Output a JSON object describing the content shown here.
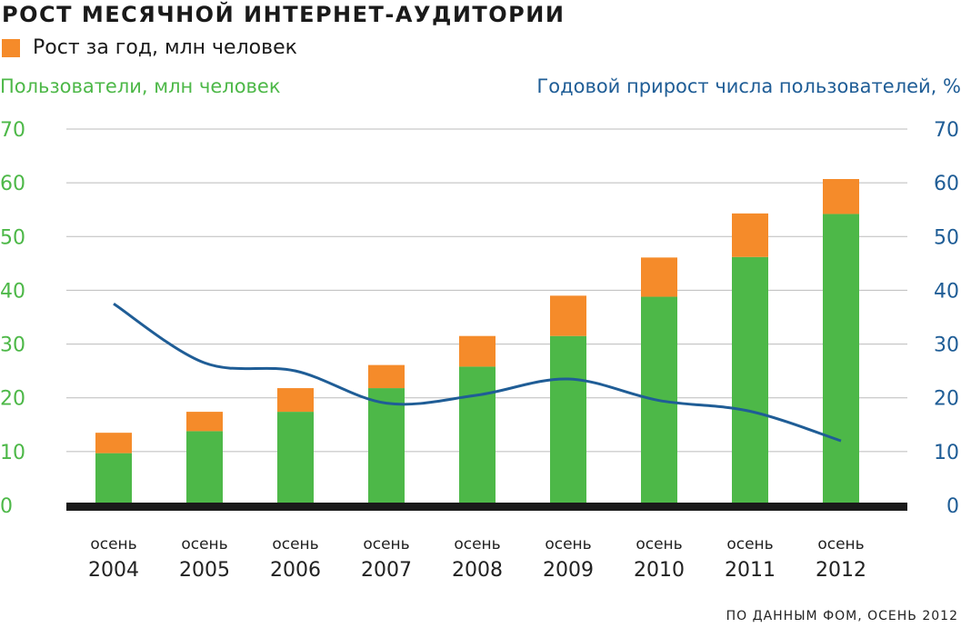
{
  "title": "РОСТ МЕСЯЧНОЙ ИНТЕРНЕТ-АУДИТОРИИ",
  "legend": {
    "label": "Рост за год, млн человек",
    "color": "#f58b2a"
  },
  "left_axis_title": "Пользователи, млн человек",
  "right_axis_title": "Годовой прирост числа пользователей, %",
  "source": "ПО ДАННЫМ ФОМ, ОСЕНЬ 2012",
  "colors": {
    "base": "#4db848",
    "growth": "#f58b2a",
    "line": "#1f5d96",
    "left_axis": "#4db848",
    "right_axis": "#1f5d96",
    "grid": "#bbbbbb",
    "baseline": "#1a1a1a"
  },
  "chart_data": {
    "type": "bar",
    "stacked": true,
    "categories": [
      [
        "осень",
        "2004"
      ],
      [
        "осень",
        "2005"
      ],
      [
        "осень",
        "2006"
      ],
      [
        "осень",
        "2007"
      ],
      [
        "осень",
        "2008"
      ],
      [
        "осень",
        "2009"
      ],
      [
        "осень",
        "2010"
      ],
      [
        "осень",
        "2011"
      ],
      [
        "осень",
        "2012"
      ]
    ],
    "series": [
      {
        "values": [
          9.7,
          13.8,
          17.4,
          21.8,
          25.8,
          31.5,
          38.8,
          46.2,
          54.2
        ]
      },
      {
        "name": "Рост за год, млн человек",
        "values": [
          3.8,
          3.6,
          4.4,
          4.3,
          5.7,
          7.5,
          7.3,
          8.1,
          6.5
        ]
      }
    ],
    "line": {
      "values": [
        37.5,
        26.5,
        25.0,
        19.0,
        20.5,
        23.5,
        19.5,
        17.5,
        12.0
      ]
    },
    "ylim_left": [
      0,
      70
    ],
    "ylim_right": [
      0,
      70
    ],
    "yticks": [
      "0",
      "10",
      "20",
      "30",
      "40",
      "50",
      "60",
      "70"
    ],
    "grid": true
  }
}
